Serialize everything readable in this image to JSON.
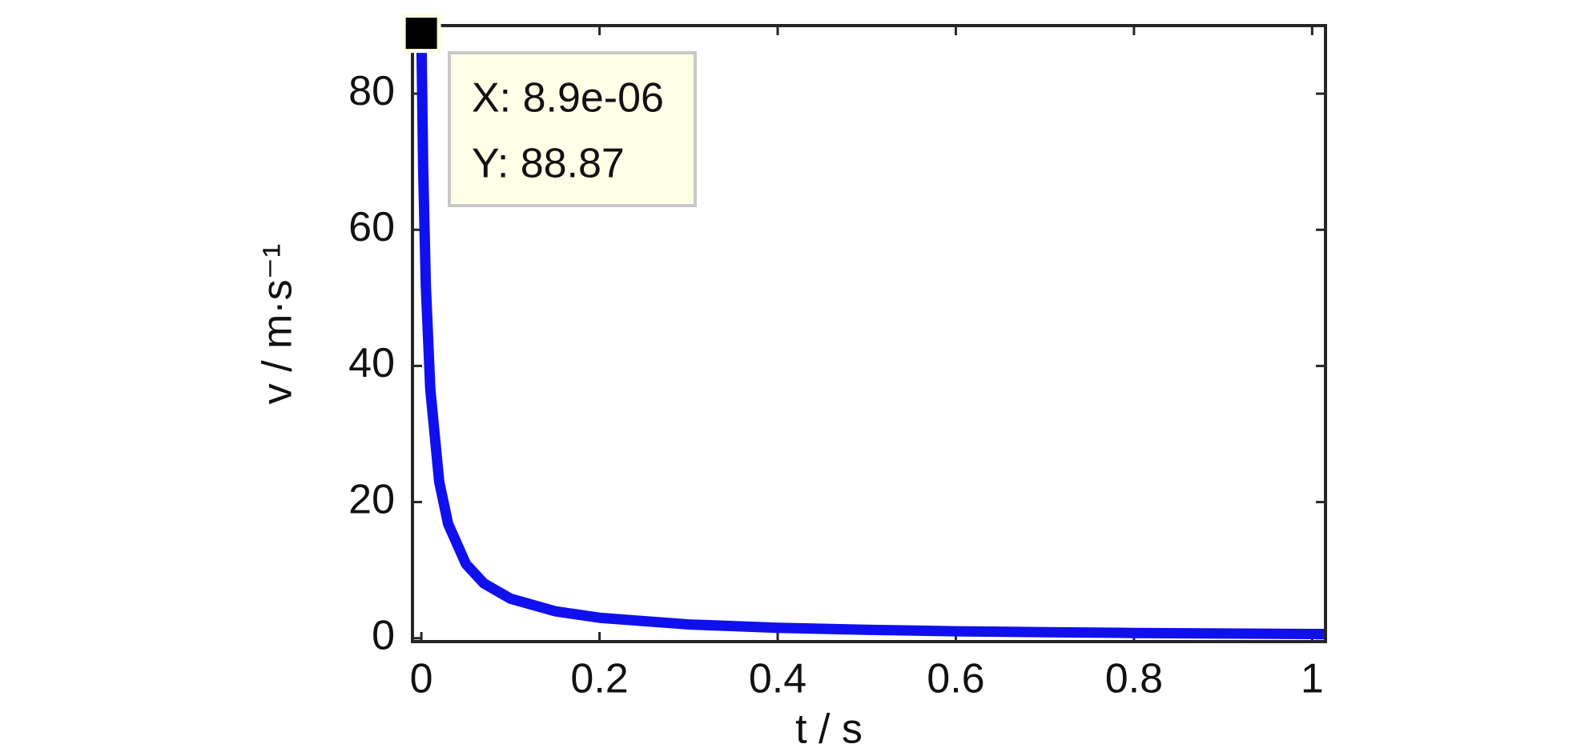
{
  "chart_data": {
    "type": "line",
    "xlabel": "t / s",
    "ylabel": "v / m·s⁻¹",
    "x": [
      8.9e-06,
      0.002,
      0.005,
      0.01,
      0.02,
      0.03,
      0.05,
      0.07,
      0.1,
      0.15,
      0.2,
      0.3,
      0.4,
      0.5,
      0.6,
      0.7,
      0.8,
      0.9,
      1.0,
      1.015
    ],
    "series": [
      {
        "color": "#1010ee",
        "values": [
          88.87,
          69.1,
          51.8,
          36.6,
          23.0,
          16.8,
          10.9,
          8.07,
          5.81,
          3.96,
          3.0,
          2.02,
          1.53,
          1.23,
          1.02,
          0.88,
          0.77,
          0.69,
          0.62,
          0.61
        ]
      }
    ],
    "xlim": [
      -0.01,
      1.015
    ],
    "ylim": [
      -0.5,
      90
    ],
    "xticks": [
      0,
      0.2,
      0.4,
      0.6,
      0.8,
      1
    ],
    "yticks": [
      0,
      20,
      40,
      60,
      80
    ],
    "datatip": [
      "X: 8.9e-06",
      "Y: 88.87"
    ]
  }
}
